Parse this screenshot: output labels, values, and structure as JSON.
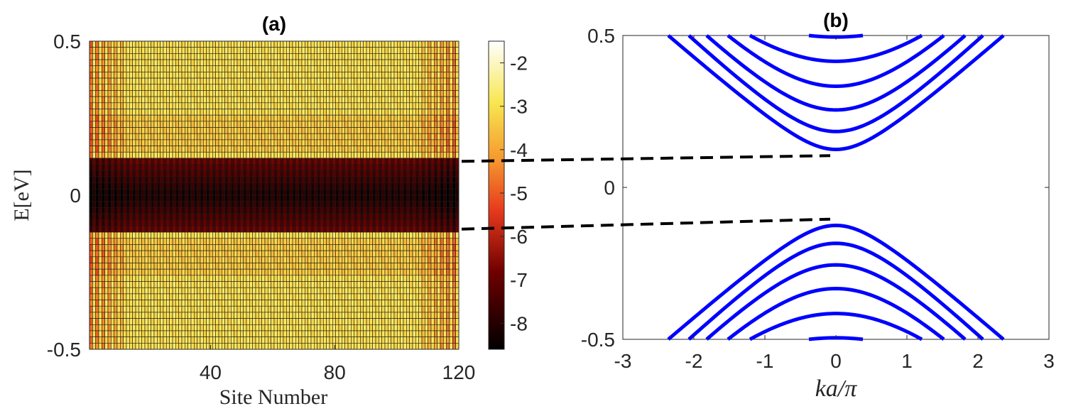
{
  "chart_data": [
    {
      "panel": "(a)",
      "type": "heatmap",
      "title": "(a)",
      "xlabel": "Site Number",
      "ylabel": "E[eV]",
      "x_range": [
        1,
        120
      ],
      "y_range": [
        -0.5,
        0.5
      ],
      "x_ticks": [
        40,
        80,
        120
      ],
      "y_ticks": [
        0.5,
        0,
        -0.5
      ],
      "grid_columns": 120,
      "grid_rows": 50,
      "colorbar": {
        "range": [
          -8.6,
          -1.5
        ],
        "ticks": [
          -2,
          -3,
          -4,
          -5,
          -6,
          -7,
          -8
        ],
        "colormap": "hot"
      },
      "value_model": {
        "band_gap_energy": 0.125,
        "value_inside_gap_center": -8.2,
        "value_inside_gap_edge": -6.8,
        "value_outside_gap": -3.0,
        "edge_sites_enhanced": true
      }
    },
    {
      "panel": "(b)",
      "type": "line",
      "title": "(b)",
      "xlabel": "ka/π",
      "ylabel": "",
      "xlim": [
        -3,
        3
      ],
      "ylim": [
        -0.5,
        0.5
      ],
      "x_ticks": [
        -3,
        -2,
        -1,
        0,
        1,
        2,
        3
      ],
      "y_ticks": [
        0.5,
        0,
        -0.5
      ],
      "line_color": "#0000ff",
      "series": [
        {
          "branch": "conduction",
          "E0": 0.125,
          "E_at_x_2p36": 0.5
        },
        {
          "branch": "conduction",
          "E0": 0.184,
          "E_at_x_2p07": 0.5
        },
        {
          "branch": "conduction",
          "E0": 0.255,
          "E_at_x_1p82": 0.5
        },
        {
          "branch": "conduction",
          "E0": 0.333,
          "E_at_x_1p52": 0.5
        },
        {
          "branch": "conduction",
          "E0": 0.415,
          "E_at_x_1p21": 0.5
        },
        {
          "branch": "conduction",
          "E0": 0.495,
          "E_at_x_0p38": 0.5
        },
        {
          "branch": "valence",
          "E0": -0.125,
          "E_at_x_2p36": -0.5
        },
        {
          "branch": "valence",
          "E0": -0.184,
          "E_at_x_2p07": -0.5
        },
        {
          "branch": "valence",
          "E0": -0.255,
          "E_at_x_1p82": -0.5
        },
        {
          "branch": "valence",
          "E0": -0.333,
          "E_at_x_1p52": -0.5
        },
        {
          "branch": "valence",
          "E0": -0.415,
          "E_at_x_1p21": -0.5
        },
        {
          "branch": "valence",
          "E0": -0.495,
          "E_at_x_0p38": -0.5
        }
      ],
      "connectors": [
        {
          "from_energy": 0.11,
          "to_energy": 0.11,
          "to_x": 0,
          "style": "dashed"
        },
        {
          "from_energy": -0.11,
          "to_energy": -0.11,
          "to_x": 0,
          "style": "dashed"
        }
      ]
    }
  ]
}
